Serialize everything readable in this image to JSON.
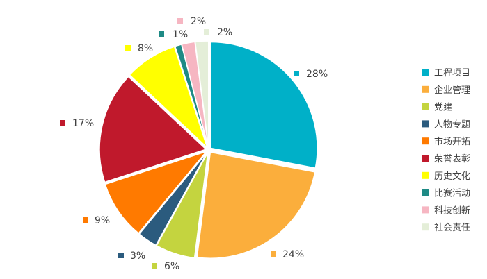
{
  "chart_data": {
    "type": "pie",
    "title": "",
    "legend_position": "right",
    "slices": [
      {
        "label": "工程项目",
        "value": 28,
        "display": "28%",
        "color": "#00b0c8"
      },
      {
        "label": "企业管理",
        "value": 24,
        "display": "24%",
        "color": "#fbae3c"
      },
      {
        "label": "党建",
        "value": 6,
        "display": "6%",
        "color": "#c4d43f"
      },
      {
        "label": "人物专题",
        "value": 3,
        "display": "3%",
        "color": "#2b5b7e"
      },
      {
        "label": "市场开拓",
        "value": 9,
        "display": "9%",
        "color": "#ff7a00"
      },
      {
        "label": "荣誉表彰",
        "value": 17,
        "display": "17%",
        "color": "#c0192c"
      },
      {
        "label": "历史文化",
        "value": 8,
        "display": "8%",
        "color": "#ffff00"
      },
      {
        "label": "比赛活动",
        "value": 1,
        "display": "1%",
        "color": "#1e8a85"
      },
      {
        "label": "科技创新",
        "value": 2,
        "display": "2%",
        "color": "#f6b6c2"
      },
      {
        "label": "社会责任",
        "value": 2,
        "display": "2%",
        "color": "#e4eed8"
      }
    ]
  }
}
